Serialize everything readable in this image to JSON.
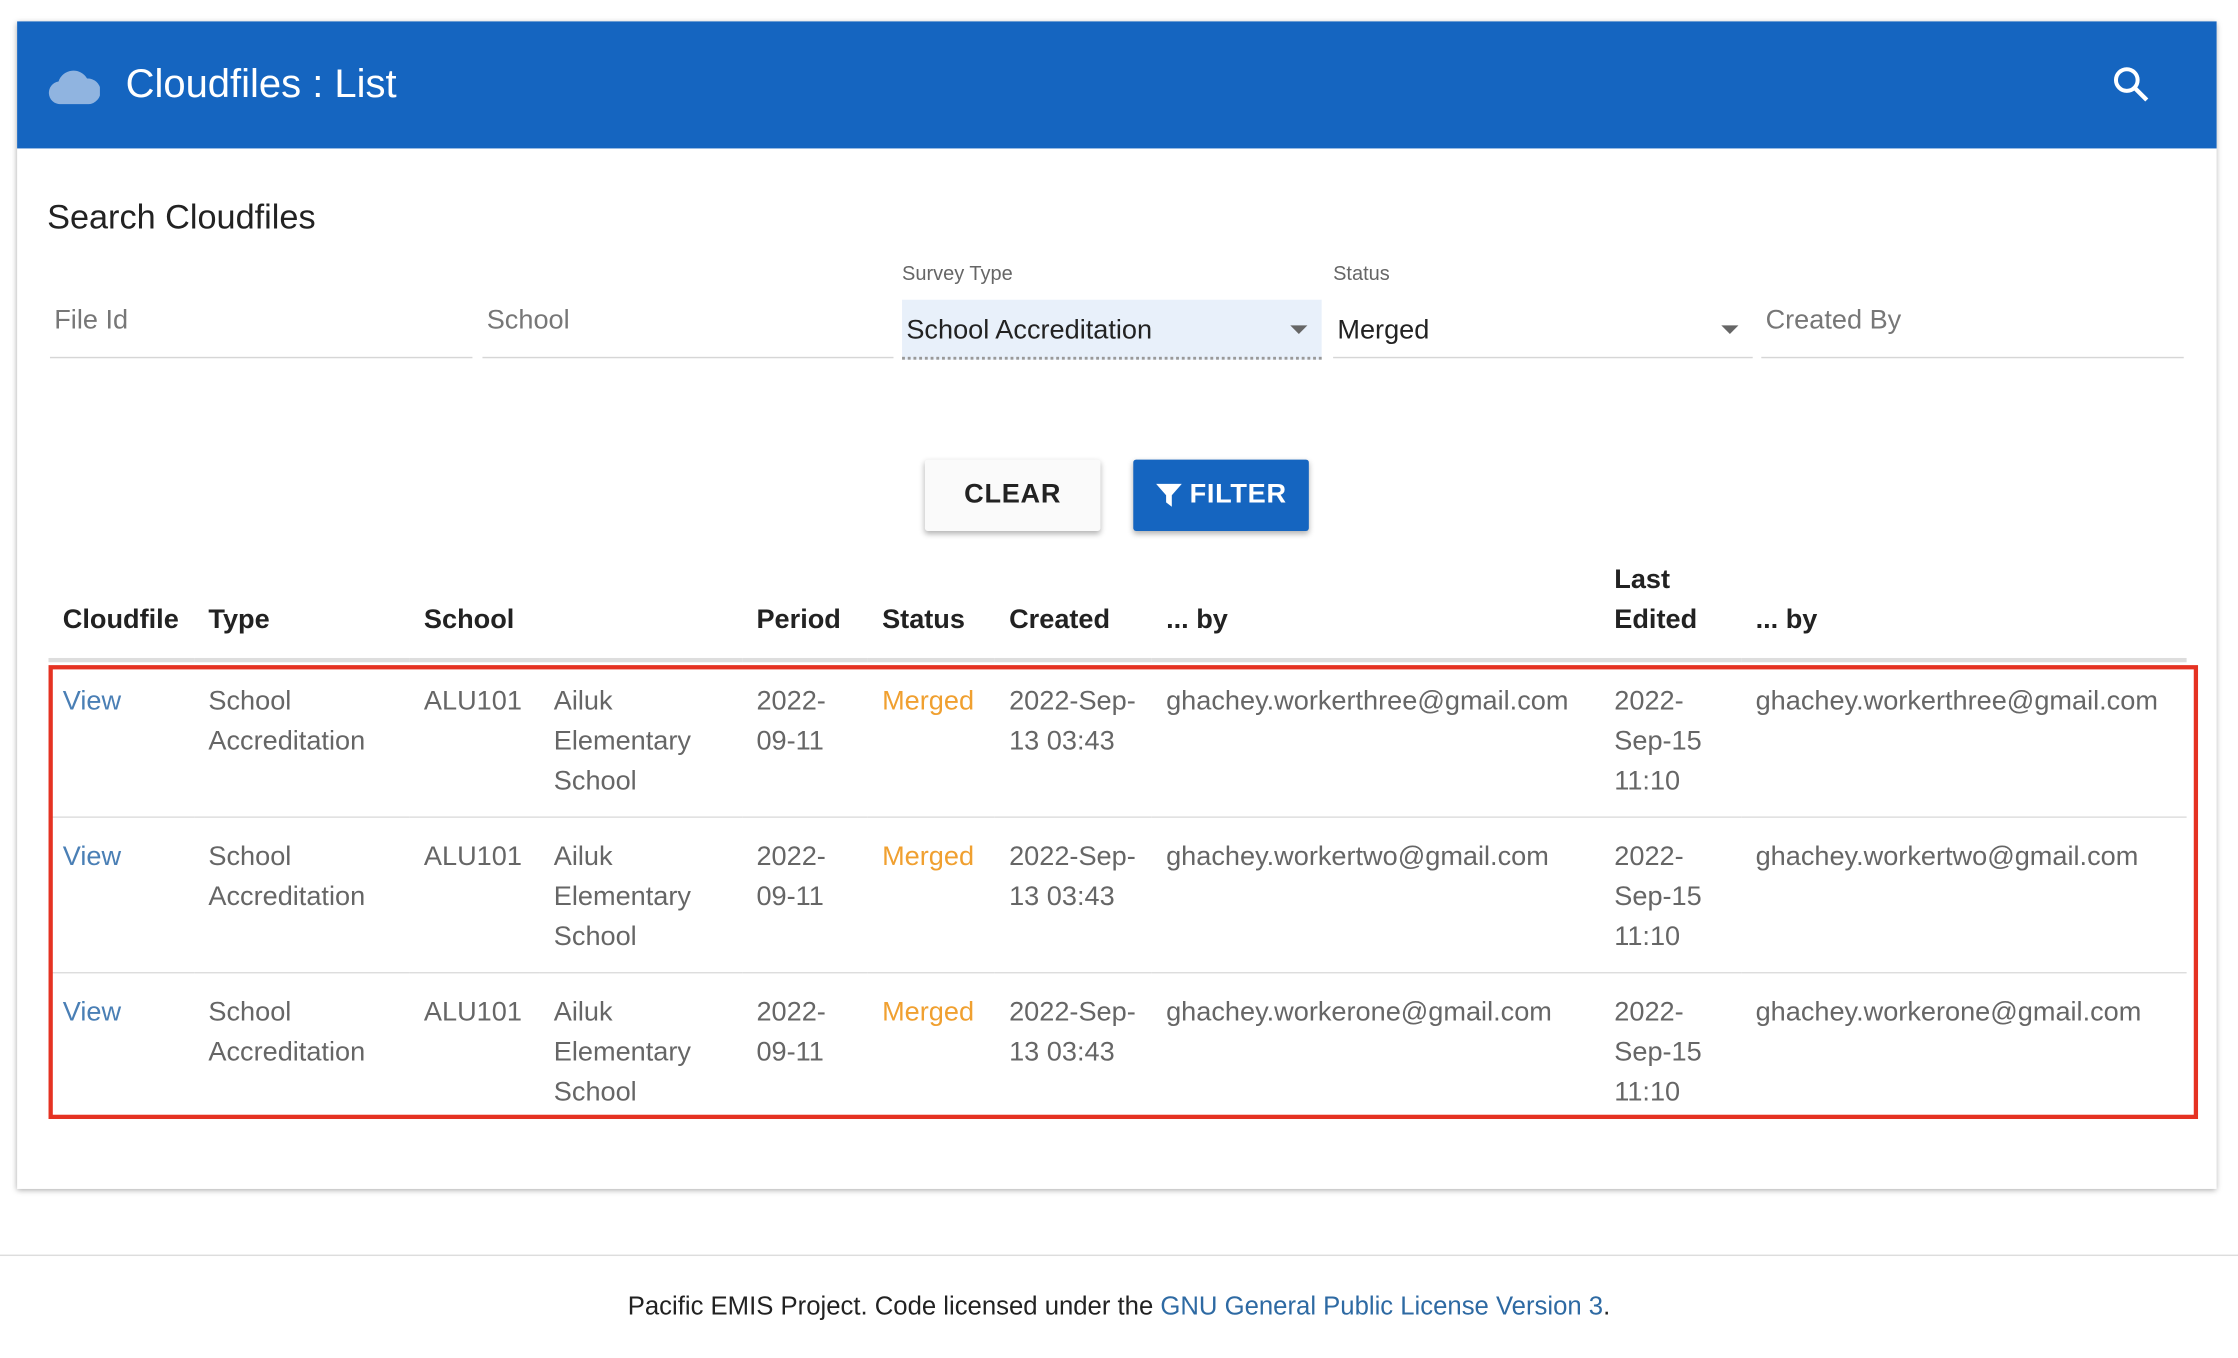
{
  "header": {
    "title": "Cloudfiles : List"
  },
  "search": {
    "title": "Search Cloudfiles",
    "fields": {
      "file_id": "File Id",
      "school": "School",
      "survey_type_label": "Survey Type",
      "survey_type_value": "School Accreditation",
      "status_label": "Status",
      "status_value": "Merged",
      "created_by": "Created By"
    },
    "buttons": {
      "clear": "CLEAR",
      "filter": "FILTER"
    }
  },
  "table": {
    "columns": [
      "Cloudfile",
      "Type",
      "School",
      "Period",
      "Status",
      "Created",
      "... by",
      "Last Edited",
      "... by"
    ],
    "rows": [
      [
        "View",
        "School Accreditation",
        "ALU101",
        "Ailuk Elementary School",
        "2022-09-11",
        "Merged",
        "2022-Sep-13 03:43",
        "ghachey.workerthree@gmail.com",
        "2022-Sep-15 11:10",
        "ghachey.workerthree@gmail.com"
      ],
      [
        "View",
        "School Accreditation",
        "ALU101",
        "Ailuk Elementary School",
        "2022-09-11",
        "Merged",
        "2022-Sep-13 03:43",
        "ghachey.workertwo@gmail.com",
        "2022-Sep-15 11:10",
        "ghachey.workertwo@gmail.com"
      ],
      [
        "View",
        "School Accreditation",
        "ALU101",
        "Ailuk Elementary School",
        "2022-09-11",
        "Merged",
        "2022-Sep-13 03:43",
        "ghachey.workerone@gmail.com",
        "2022-Sep-15 11:10",
        "ghachey.workerone@gmail.com"
      ]
    ]
  },
  "footer": {
    "text": "Pacific EMIS Project. Code licensed under the",
    "link": "GNU General Public License Version 3",
    "end": "."
  }
}
